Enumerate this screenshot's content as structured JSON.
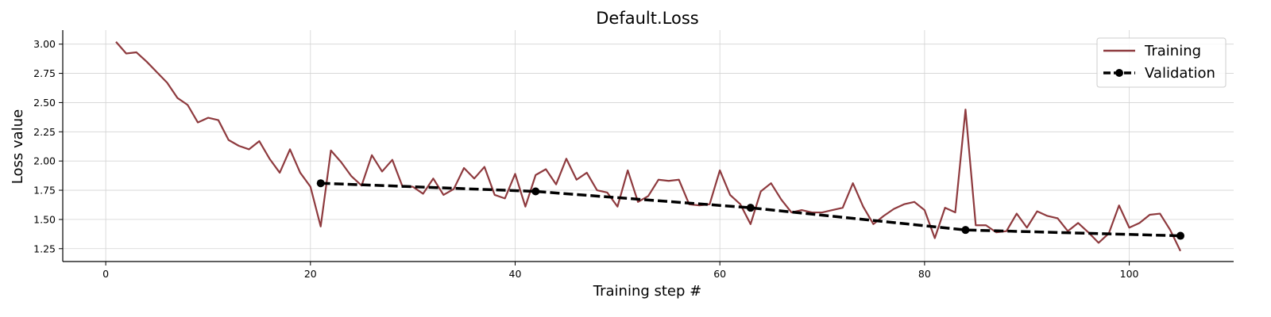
{
  "chart_data": {
    "type": "line",
    "title": "Default.Loss",
    "xlabel": "Training step #",
    "ylabel": "Loss value",
    "xlim": [
      -4.2,
      110.2
    ],
    "ylim": [
      1.14,
      3.12
    ],
    "xticks": [
      0,
      20,
      40,
      60,
      80,
      100
    ],
    "yticks": [
      1.25,
      1.5,
      1.75,
      2.0,
      2.25,
      2.5,
      2.75,
      3.0
    ],
    "ytick_labels": [
      "1.25",
      "1.50",
      "1.75",
      "2.00",
      "2.25",
      "2.50",
      "2.75",
      "3.00"
    ],
    "grid": true,
    "legend_position": "top-right",
    "series": [
      {
        "name": "Training",
        "color": "#8e3a3e",
        "style": "solid",
        "x": [
          1,
          2,
          3,
          4,
          5,
          6,
          7,
          8,
          9,
          10,
          11,
          12,
          13,
          14,
          15,
          16,
          17,
          18,
          19,
          20,
          21,
          22,
          23,
          24,
          25,
          26,
          27,
          28,
          29,
          30,
          31,
          32,
          33,
          34,
          35,
          36,
          37,
          38,
          39,
          40,
          41,
          42,
          43,
          44,
          45,
          46,
          47,
          48,
          49,
          50,
          51,
          52,
          53,
          54,
          55,
          56,
          57,
          58,
          59,
          60,
          61,
          62,
          63,
          64,
          65,
          66,
          67,
          68,
          69,
          70,
          71,
          72,
          73,
          74,
          75,
          76,
          77,
          78,
          79,
          80,
          81,
          82,
          83,
          84,
          85,
          86,
          87,
          88,
          89,
          90,
          91,
          92,
          93,
          94,
          95,
          96,
          97,
          98,
          99,
          100,
          101,
          102,
          103,
          104,
          105
        ],
        "y": [
          3.02,
          2.92,
          2.93,
          2.85,
          2.76,
          2.67,
          2.54,
          2.48,
          2.33,
          2.37,
          2.35,
          2.18,
          2.13,
          2.1,
          2.17,
          2.02,
          1.9,
          2.1,
          1.9,
          1.78,
          1.44,
          2.09,
          1.99,
          1.87,
          1.79,
          2.05,
          1.91,
          2.01,
          1.78,
          1.78,
          1.72,
          1.85,
          1.71,
          1.76,
          1.94,
          1.85,
          1.95,
          1.71,
          1.68,
          1.89,
          1.61,
          1.88,
          1.93,
          1.8,
          2.02,
          1.84,
          1.9,
          1.75,
          1.73,
          1.61,
          1.92,
          1.65,
          1.7,
          1.84,
          1.83,
          1.84,
          1.63,
          1.62,
          1.63,
          1.92,
          1.71,
          1.63,
          1.46,
          1.74,
          1.81,
          1.67,
          1.56,
          1.58,
          1.56,
          1.56,
          1.58,
          1.6,
          1.81,
          1.61,
          1.46,
          1.53,
          1.59,
          1.63,
          1.65,
          1.58,
          1.34,
          1.6,
          1.56,
          2.44,
          1.45,
          1.45,
          1.39,
          1.4,
          1.55,
          1.43,
          1.57,
          1.53,
          1.51,
          1.4,
          1.47,
          1.39,
          1.3,
          1.38,
          1.62,
          1.43,
          1.47,
          1.54,
          1.55,
          1.41,
          1.23
        ]
      },
      {
        "name": "Validation",
        "color": "#000000",
        "style": "dashed",
        "marker": "circle",
        "x": [
          21,
          42,
          63,
          84,
          105
        ],
        "y": [
          1.81,
          1.74,
          1.6,
          1.41,
          1.36
        ]
      }
    ]
  }
}
